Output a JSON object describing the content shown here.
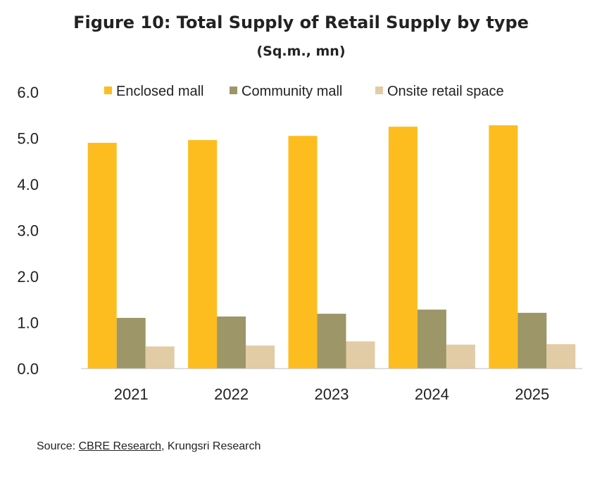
{
  "title": "Figure 10: Total Supply of Retail Supply by type",
  "subtitle": "(Sq.m., mn)",
  "source": {
    "prefix": "Source: ",
    "link_text": "CBRE Research",
    "suffix": ", Krungsri Research"
  },
  "chart_data": {
    "type": "bar",
    "categories": [
      "2021",
      "2022",
      "2023",
      "2024",
      "2025"
    ],
    "series": [
      {
        "name": "Enclosed mall",
        "color": "#FDBD1E",
        "values": [
          4.9,
          4.96,
          5.05,
          5.25,
          5.28
        ]
      },
      {
        "name": "Community mall",
        "color": "#9C9668",
        "values": [
          1.1,
          1.13,
          1.19,
          1.28,
          1.21
        ]
      },
      {
        "name": "Onsite retail space",
        "color": "#E2CCA6",
        "values": [
          0.48,
          0.5,
          0.59,
          0.52,
          0.53
        ]
      }
    ],
    "ylim": [
      0,
      6
    ],
    "yticks": [
      "0.0",
      "1.0",
      "2.0",
      "3.0",
      "4.0",
      "5.0",
      "6.0"
    ],
    "grid": false,
    "legend": "top"
  }
}
